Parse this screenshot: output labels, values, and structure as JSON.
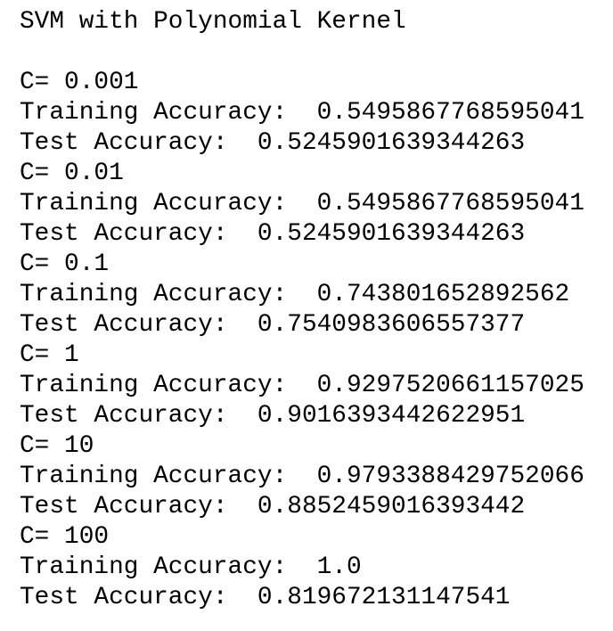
{
  "output": {
    "title": "SVM with Polynomial Kernel",
    "blocks": [
      {
        "c_label": "C=",
        "c": "0.001",
        "training_label": "Training Accuracy:",
        "training": "0.5495867768595041",
        "test_label": "Test Accuracy:",
        "test": "0.5245901639344263"
      },
      {
        "c_label": "C=",
        "c": "0.01",
        "training_label": "Training Accuracy:",
        "training": "0.5495867768595041",
        "test_label": "Test Accuracy:",
        "test": "0.5245901639344263"
      },
      {
        "c_label": "C=",
        "c": "0.1",
        "training_label": "Training Accuracy:",
        "training": "0.743801652892562",
        "test_label": "Test Accuracy:",
        "test": "0.7540983606557377"
      },
      {
        "c_label": "C=",
        "c": "1",
        "training_label": "Training Accuracy:",
        "training": "0.9297520661157025",
        "test_label": "Test Accuracy:",
        "test": "0.9016393442622951"
      },
      {
        "c_label": "C=",
        "c": "10",
        "training_label": "Training Accuracy:",
        "training": "0.9793388429752066",
        "test_label": "Test Accuracy:",
        "test": "0.8852459016393442"
      },
      {
        "c_label": "C=",
        "c": "100",
        "training_label": "Training Accuracy:",
        "training": "1.0",
        "test_label": "Test Accuracy:",
        "test": "0.819672131147541"
      }
    ]
  }
}
